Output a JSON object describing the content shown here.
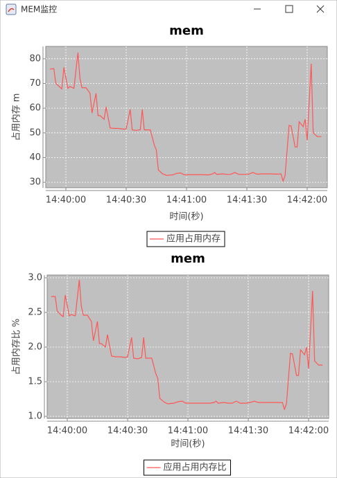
{
  "window": {
    "title": "MEM监控"
  },
  "chart_data": [
    {
      "type": "line",
      "title": "mem",
      "xlabel": "时间(秒)",
      "ylabel": "占用内存 m",
      "x": [
        "14:39:52",
        "14:39:54",
        "14:39:55",
        "14:39:57",
        "14:39:58",
        "14:39:59",
        "14:40:01",
        "14:40:02",
        "14:40:04",
        "14:40:06",
        "14:40:07",
        "14:40:08",
        "14:40:10",
        "14:40:12",
        "14:40:13",
        "14:40:15",
        "14:40:16",
        "14:40:17",
        "14:40:19",
        "14:40:20",
        "14:40:22",
        "14:40:24",
        "14:40:26",
        "14:40:29",
        "14:40:30",
        "14:40:32",
        "14:40:33",
        "14:40:35",
        "14:40:37",
        "14:40:38",
        "14:40:39",
        "14:40:42",
        "14:40:44",
        "14:40:45",
        "14:40:46",
        "14:40:48",
        "14:40:50",
        "14:40:53",
        "14:40:55",
        "14:40:57",
        "14:40:59",
        "14:41:01",
        "14:41:04",
        "14:41:07",
        "14:41:11",
        "14:41:13",
        "14:41:14",
        "14:41:15",
        "14:41:18",
        "14:41:20",
        "14:41:22",
        "14:41:24",
        "14:41:26",
        "14:41:29",
        "14:41:31",
        "14:41:33",
        "14:41:35",
        "14:41:38",
        "14:41:42",
        "14:41:45",
        "14:41:47",
        "14:41:48",
        "14:41:49",
        "14:41:51",
        "14:41:52",
        "14:41:54",
        "14:41:55",
        "14:41:56",
        "14:41:58",
        "14:41:59",
        "14:42:00",
        "14:42:02",
        "14:42:03",
        "14:42:05",
        "14:42:07"
      ],
      "series": [
        {
          "name": "应用占用内存",
          "color": "#ff5555",
          "values": [
            75.8,
            76,
            70,
            68.5,
            67.8,
            76.5,
            68,
            68.8,
            68,
            82.5,
            72,
            68.3,
            68.3,
            66,
            58,
            66,
            57,
            57,
            55.5,
            60.5,
            52,
            51.8,
            51.8,
            51.5,
            51.6,
            59.5,
            51.2,
            51,
            51.3,
            59.5,
            51.2,
            51.2,
            45,
            43,
            35,
            33.5,
            32.8,
            33,
            33.6,
            33.8,
            33,
            33.1,
            33.1,
            33.1,
            33,
            33.4,
            34,
            33.2,
            33.4,
            33.2,
            33.2,
            34,
            33.2,
            33.2,
            33.3,
            34,
            33.3,
            33.4,
            33.4,
            33.3,
            33.4,
            30.5,
            32.7,
            53,
            52.8,
            44.3,
            44.3,
            54.5,
            52.5,
            55.5,
            47,
            78,
            50,
            48.5,
            48.5
          ]
        }
      ],
      "xlim": [
        "14:39:50",
        "14:42:10"
      ],
      "xticks": [
        "14:40:00",
        "14:40:30",
        "14:41:00",
        "14:41:30",
        "14:42:00"
      ],
      "ylim": [
        27.8,
        85
      ],
      "yticks": [
        30,
        40,
        50,
        60,
        70,
        80
      ],
      "grid": true
    },
    {
      "type": "line",
      "title": "mem",
      "xlabel": "时间(秒)",
      "ylabel": "占用内存比 %",
      "x": [
        "14:39:52",
        "14:39:54",
        "14:39:55",
        "14:39:57",
        "14:39:58",
        "14:39:59",
        "14:40:01",
        "14:40:02",
        "14:40:04",
        "14:40:06",
        "14:40:07",
        "14:40:08",
        "14:40:10",
        "14:40:12",
        "14:40:13",
        "14:40:15",
        "14:40:16",
        "14:40:17",
        "14:40:19",
        "14:40:20",
        "14:40:22",
        "14:40:24",
        "14:40:26",
        "14:40:29",
        "14:40:30",
        "14:40:32",
        "14:40:33",
        "14:40:35",
        "14:40:37",
        "14:40:38",
        "14:40:39",
        "14:40:42",
        "14:40:44",
        "14:40:45",
        "14:40:46",
        "14:40:48",
        "14:40:50",
        "14:40:53",
        "14:40:55",
        "14:40:57",
        "14:40:59",
        "14:41:01",
        "14:41:04",
        "14:41:07",
        "14:41:11",
        "14:41:13",
        "14:41:14",
        "14:41:15",
        "14:41:18",
        "14:41:20",
        "14:41:22",
        "14:41:24",
        "14:41:26",
        "14:41:29",
        "14:41:31",
        "14:41:33",
        "14:41:35",
        "14:41:38",
        "14:41:42",
        "14:41:45",
        "14:41:47",
        "14:41:48",
        "14:41:49",
        "14:41:51",
        "14:41:52",
        "14:41:54",
        "14:41:55",
        "14:41:56",
        "14:41:58",
        "14:41:59",
        "14:42:00",
        "14:42:02",
        "14:42:03",
        "14:42:05",
        "14:42:07"
      ],
      "series": [
        {
          "name": "应用占用内存比",
          "color": "#ff5555",
          "values": [
            2.73,
            2.73,
            2.52,
            2.46,
            2.44,
            2.75,
            2.45,
            2.47,
            2.45,
            2.97,
            2.59,
            2.46,
            2.46,
            2.37,
            2.09,
            2.37,
            2.05,
            2.05,
            2.0,
            2.18,
            1.87,
            1.86,
            1.86,
            1.85,
            1.86,
            2.14,
            1.84,
            1.83,
            1.85,
            2.14,
            1.84,
            1.84,
            1.62,
            1.55,
            1.26,
            1.21,
            1.18,
            1.19,
            1.21,
            1.22,
            1.19,
            1.19,
            1.19,
            1.19,
            1.19,
            1.2,
            1.22,
            1.19,
            1.2,
            1.19,
            1.19,
            1.22,
            1.19,
            1.19,
            1.2,
            1.22,
            1.2,
            1.2,
            1.2,
            1.2,
            1.2,
            1.1,
            1.18,
            1.91,
            1.9,
            1.59,
            1.59,
            1.96,
            1.89,
            2.0,
            1.69,
            2.81,
            1.8,
            1.74,
            1.74
          ]
        }
      ],
      "xlim": [
        "14:39:50",
        "14:42:10"
      ],
      "xticks": [
        "14:40:00",
        "14:40:30",
        "14:41:00",
        "14:41:30",
        "14:42:00"
      ],
      "ylim": [
        0.97,
        3.04
      ],
      "yticks": [
        {
          "value": 1,
          "label": "1.0"
        },
        1.5,
        {
          "value": 2,
          "label": "2.0"
        },
        2.5,
        {
          "value": 3,
          "label": "3.0"
        }
      ],
      "grid": true
    }
  ]
}
